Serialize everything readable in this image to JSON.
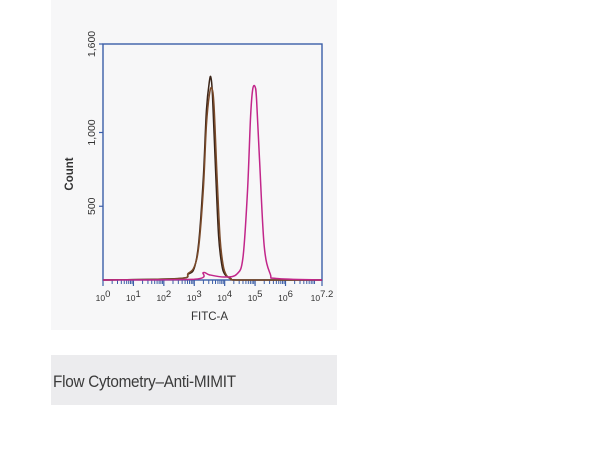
{
  "colors": {
    "axis": "#3b5ea8",
    "panel_background": "#f7f7f8",
    "caption_background": "#ececee",
    "series_dark": "#3a2418",
    "series_brown": "#7a4a2a",
    "series_magenta": "#c2268a"
  },
  "caption": {
    "text": "Flow Cytometry–Anti-MIMIT"
  },
  "chart_data": {
    "type": "line",
    "xlabel": "FITC-A",
    "ylabel": "Count",
    "x_scale": "log10",
    "xlim": [
      0,
      7.2
    ],
    "ylim": [
      0,
      1600
    ],
    "x_ticks": [
      {
        "value": 0,
        "base": "10",
        "exp": "0"
      },
      {
        "value": 1,
        "base": "10",
        "exp": "1"
      },
      {
        "value": 2,
        "base": "10",
        "exp": "2"
      },
      {
        "value": 3,
        "base": "10",
        "exp": "3"
      },
      {
        "value": 4,
        "base": "10",
        "exp": "4"
      },
      {
        "value": 5,
        "base": "10",
        "exp": "5"
      },
      {
        "value": 6,
        "base": "10",
        "exp": "6"
      },
      {
        "value": 7.2,
        "base": "10",
        "exp": "7.2"
      }
    ],
    "y_ticks": [
      {
        "value": 500,
        "label": "500"
      },
      {
        "value": 1000,
        "label": "1,000"
      },
      {
        "value": 1600,
        "label": "1,600"
      }
    ],
    "grid": false,
    "series": [
      {
        "color": "#3a2418",
        "x": [
          0,
          2.5,
          2.8,
          3.0,
          3.15,
          3.3,
          3.4,
          3.5,
          3.55,
          3.6,
          3.7,
          3.8,
          3.9,
          4.0,
          4.2,
          4.5,
          7.2
        ],
        "y": [
          0,
          10,
          40,
          80,
          260,
          700,
          1150,
          1350,
          1370,
          1250,
          750,
          300,
          110,
          40,
          10,
          0,
          0
        ]
      },
      {
        "color": "#7a4a2a",
        "x": [
          0,
          2.5,
          2.8,
          3.0,
          3.15,
          3.3,
          3.4,
          3.5,
          3.58,
          3.65,
          3.75,
          3.85,
          3.95,
          4.05,
          4.2,
          4.5,
          7.2
        ],
        "y": [
          0,
          10,
          45,
          90,
          230,
          620,
          1050,
          1260,
          1300,
          1180,
          700,
          280,
          100,
          35,
          10,
          0,
          0
        ]
      },
      {
        "color": "#c2268a",
        "x": [
          0,
          3.0,
          3.3,
          3.5,
          4.0,
          4.4,
          4.6,
          4.75,
          4.85,
          4.92,
          5.0,
          5.05,
          5.15,
          5.3,
          5.5,
          5.7,
          7.2
        ],
        "y": [
          0,
          5,
          50,
          35,
          20,
          40,
          150,
          600,
          1100,
          1290,
          1310,
          1220,
          800,
          230,
          40,
          10,
          0
        ]
      }
    ]
  }
}
